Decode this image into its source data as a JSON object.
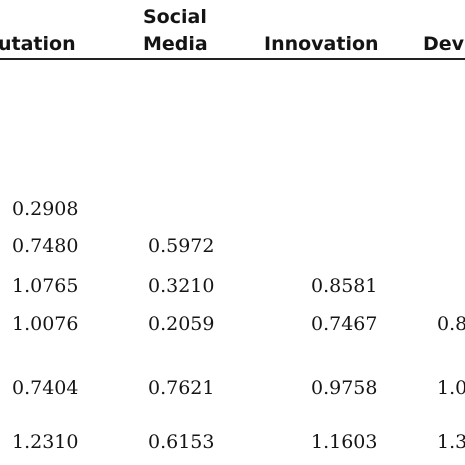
{
  "table": {
    "headers": {
      "reputation": "utation",
      "social_media_line1": "Social",
      "social_media_line2": "Media",
      "innovation": "Innovation",
      "development": "Dev"
    },
    "rows": [
      [
        "0.2908",
        "",
        "",
        ""
      ],
      [
        "0.7480",
        "0.5972",
        "",
        ""
      ],
      [
        "1.0765",
        "0.3210",
        "0.8581",
        ""
      ],
      [
        "1.0076",
        "0.2059",
        "0.7467",
        "0.8"
      ],
      [
        "0.7404",
        "0.7621",
        "0.9758",
        "1.0"
      ],
      [
        "1.2310",
        "0.6153",
        "1.1603",
        "1.3"
      ]
    ]
  }
}
